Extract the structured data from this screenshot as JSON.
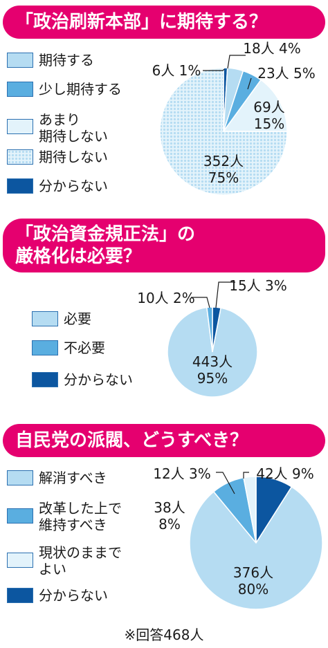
{
  "colors": {
    "banner": "#e5006f",
    "light_blue": "#b5dcf2",
    "mid_blue": "#5aaee0",
    "very_light": "#e3f3fb",
    "dotted_bg": "#e3f3fb",
    "dot": "#b5dcf2",
    "dark_blue": "#0c56a0"
  },
  "chart_data": [
    {
      "type": "pie",
      "title": "「政治刷新本部」に期待する？",
      "categories": [
        "期待する",
        "少し期待する",
        "あまり期待しない",
        "期待しない",
        "分からない"
      ],
      "legend_labels": [
        "期待する",
        "少し期待する",
        "あまり\n期待しない",
        "期待しない",
        "分からない"
      ],
      "counts": [
        18,
        23,
        69,
        352,
        6
      ],
      "percents": [
        4,
        5,
        15,
        75,
        1
      ],
      "data_labels": [
        "18人 4%",
        "23人 5%",
        "69人\n15%",
        "352人\n75%",
        "6人 1%"
      ],
      "legend_position": "left"
    },
    {
      "type": "pie",
      "title": "「政治資金規正法」の\n厳格化は必要？",
      "categories": [
        "必要",
        "不必要",
        "分からない"
      ],
      "legend_labels": [
        "必要",
        "不必要",
        "分からない"
      ],
      "counts": [
        443,
        10,
        15
      ],
      "percents": [
        95,
        2,
        3
      ],
      "data_labels": [
        "443人\n95%",
        "10人 2%",
        "15人 3%"
      ],
      "legend_position": "left"
    },
    {
      "type": "pie",
      "title": "自民党の派閥、どうすべき？",
      "categories": [
        "解消すべき",
        "改革した上で維持すべき",
        "現状のままでよい",
        "分からない"
      ],
      "legend_labels": [
        "解消すべき",
        "改革した上で\n維持すべき",
        "現状のままで\nよい",
        "分からない"
      ],
      "counts": [
        376,
        38,
        12,
        42
      ],
      "percents": [
        80,
        8,
        3,
        9
      ],
      "data_labels": [
        "376人\n80%",
        "38人\n8%",
        "12人 3%",
        "42人 9%"
      ],
      "legend_position": "left"
    }
  ],
  "footer": "※回答468人"
}
